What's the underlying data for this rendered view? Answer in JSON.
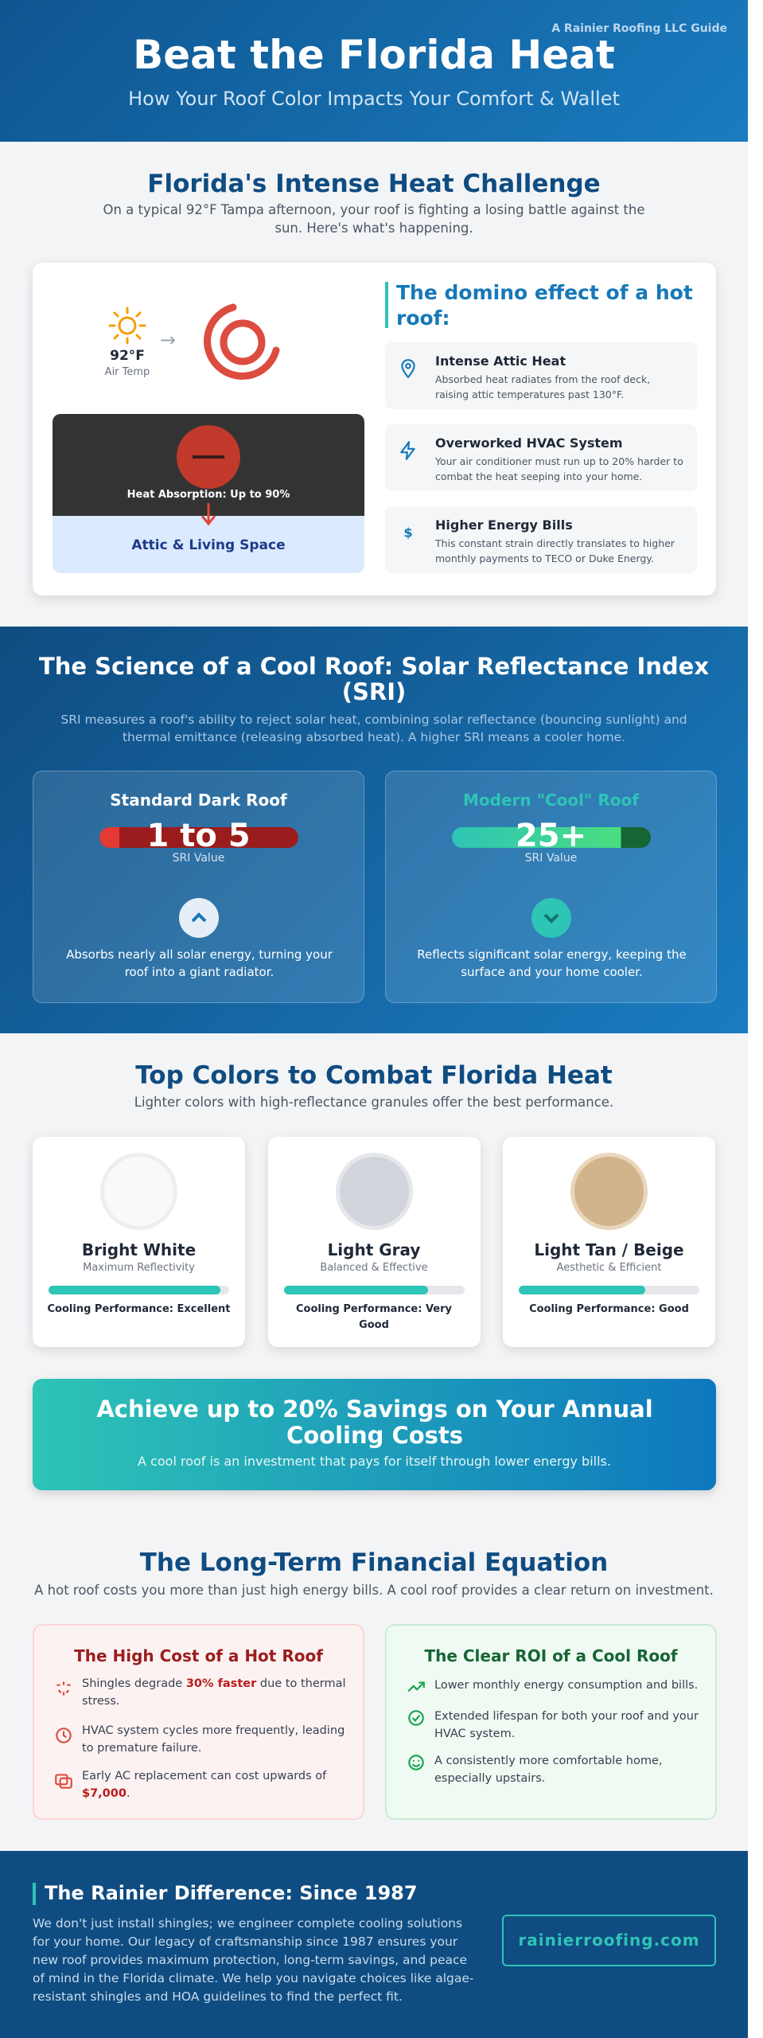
{
  "header": {
    "tag": "A Rainier Roofing LLC Guide",
    "title": "Beat the Florida Heat",
    "subtitle": "How Your Roof Color Impacts Your Comfort & Wallet"
  },
  "heat": {
    "title": "Florida's Intense Heat Challenge",
    "text": "On a typical 92°F Tampa afternoon, your roof is fighting a losing battle against the sun. Here's what's happening.",
    "temp": "92°F",
    "temp_label": "Air Temp",
    "absorption": "Heat Absorption: Up to 90%",
    "attic": "Attic & Living Space",
    "domino_title": "The domino effect of a hot roof:",
    "items": [
      {
        "title": "Intense Attic Heat",
        "text": "Absorbed heat radiates from the roof deck, raising attic temperatures past 130°F."
      },
      {
        "title": "Overworked HVAC System",
        "text": "Your air conditioner must run up to 20% harder to combat the heat seeping into your home."
      },
      {
        "title": "Higher Energy Bills",
        "text": "This constant strain directly translates to higher monthly payments to TECO or Duke Energy."
      }
    ]
  },
  "sri": {
    "title": "The Science of a Cool Roof: Solar Reflectance Index (SRI)",
    "text": "SRI measures a roof's ability to reject solar heat, combining solar reflectance (bouncing sunlight) and thermal emittance (releasing absorbed heat). A higher SRI means a cooler home.",
    "cards": [
      {
        "title": "Standard Dark Roof",
        "value": "1 to 5",
        "value_label": "SRI Value",
        "text": "Absorbs nearly all solar energy, turning your roof into a giant radiator."
      },
      {
        "title": "Modern \"Cool\" Roof",
        "value": "25+",
        "value_label": "SRI Value",
        "text": "Reflects significant solar energy, keeping the surface and your home cooler."
      }
    ]
  },
  "colors": {
    "title": "Top Colors to Combat Florida Heat",
    "text": "Lighter colors with high-reflectance granules offer the best performance.",
    "cards": [
      {
        "name": "Bright White",
        "sub": "Maximum Reflectivity",
        "performance": "Cooling Performance: Excellent"
      },
      {
        "name": "Light Gray",
        "sub": "Balanced & Effective",
        "performance": "Cooling Performance: Very Good"
      },
      {
        "name": "Light Tan / Beige",
        "sub": "Aesthetic & Efficient",
        "performance": "Cooling Performance: Good"
      }
    ]
  },
  "savings": {
    "title": "Achieve up to 20% Savings on Your Annual Cooling Costs",
    "text": "A cool roof is an investment that pays for itself through lower energy bills."
  },
  "finance": {
    "title": "The Long-Term Financial Equation",
    "text": "A hot roof costs you more than just high energy bills. A cool roof provides a clear return on investment.",
    "hot": {
      "title": "The High Cost of a Hot Roof",
      "items": [
        [
          "Shingles degrade ",
          "30% faster",
          " due to thermal stress."
        ],
        [
          "HVAC system cycles more frequently, leading to premature failure."
        ],
        [
          "Early AC replacement can cost upwards of ",
          "$7,000",
          "."
        ]
      ]
    },
    "cool": {
      "title": "The Clear ROI of a Cool Roof",
      "items": [
        "Lower monthly energy consumption and bills.",
        "Extended lifespan for both your roof and your HVAC system.",
        "A consistently more comfortable home, especially upstairs."
      ]
    }
  },
  "footer": {
    "title": "The Rainier Difference: Since 1987",
    "text": "We don't just install shingles; we engineer complete cooling solutions for your home. Our legacy of craftsmanship since 1987 ensures your new roof provides maximum protection, long-term savings, and peace of mind in the Florida climate. We help you navigate choices like algae-resistant shingles and HOA guidelines to find the perfect fit.",
    "link": "rainierroofing.com"
  }
}
